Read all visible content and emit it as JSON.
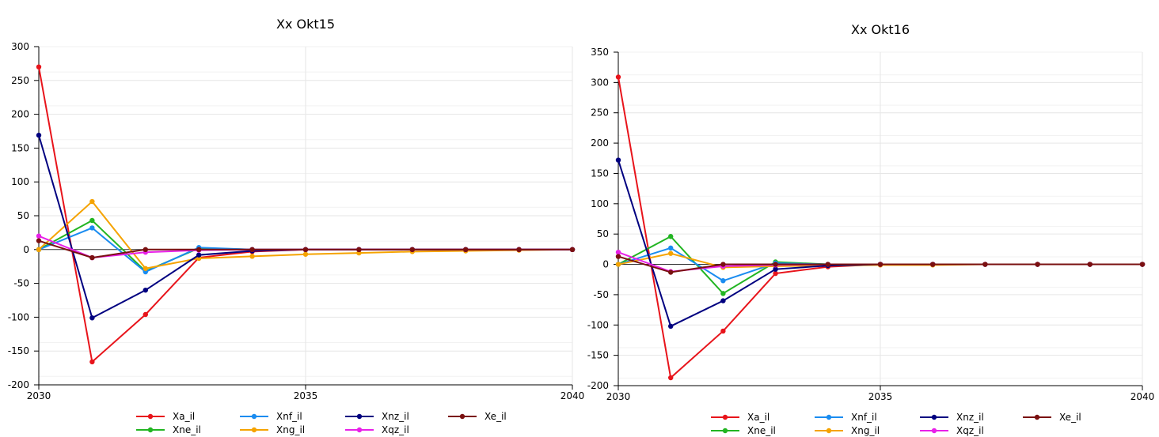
{
  "chart_data": [
    {
      "type": "line",
      "title": "Xx Okt15",
      "xlabel": "",
      "ylabel": "",
      "xlim": [
        2030,
        2040
      ],
      "ylim": [
        -200,
        300
      ],
      "xticks": [
        2030,
        2035,
        2040
      ],
      "yticks": [
        -200,
        -150,
        -100,
        -50,
        0,
        50,
        100,
        150,
        200,
        250,
        300
      ],
      "grid": true,
      "legend": "bottom",
      "x": [
        2030,
        2031,
        2032,
        2033,
        2034,
        2035,
        2036,
        2037,
        2038,
        2039,
        2040
      ],
      "series": [
        {
          "name": "Xa_il",
          "color": "#e8141b",
          "values": [
            270,
            -166,
            -96,
            -12,
            -3,
            0,
            0,
            0,
            0,
            0,
            0
          ]
        },
        {
          "name": "Xne_il",
          "color": "#22b522",
          "values": [
            0,
            43,
            -32,
            2,
            0,
            0,
            0,
            0,
            0,
            0,
            0
          ]
        },
        {
          "name": "Xnf_il",
          "color": "#1a8cf0",
          "values": [
            0,
            32,
            -33,
            3,
            0,
            0,
            0,
            0,
            0,
            0,
            0
          ]
        },
        {
          "name": "Xng_il",
          "color": "#f5a300",
          "values": [
            0,
            71,
            -28,
            -13,
            -10,
            -7,
            -5,
            -3,
            -2,
            -1,
            0
          ]
        },
        {
          "name": "Xnz_il",
          "color": "#000080",
          "values": [
            169,
            -101,
            -60,
            -8,
            -2,
            0,
            0,
            0,
            0,
            0,
            0
          ]
        },
        {
          "name": "Xqz_il",
          "color": "#e820e8",
          "values": [
            20,
            -12,
            -4,
            -1,
            0,
            0,
            0,
            0,
            0,
            0,
            0
          ]
        },
        {
          "name": "Xe_il",
          "color": "#7a1010",
          "values": [
            13,
            -12,
            0,
            0,
            0,
            0,
            0,
            0,
            0,
            0,
            0
          ]
        }
      ]
    },
    {
      "type": "line",
      "title": "Xx Okt16",
      "xlabel": "",
      "ylabel": "",
      "xlim": [
        2030,
        2040
      ],
      "ylim": [
        -200,
        350
      ],
      "xticks": [
        2030,
        2035,
        2040
      ],
      "yticks": [
        -200,
        -150,
        -100,
        -50,
        0,
        50,
        100,
        150,
        200,
        250,
        300,
        350
      ],
      "grid": true,
      "legend": "bottom",
      "x": [
        2030,
        2031,
        2032,
        2033,
        2034,
        2035,
        2036,
        2037,
        2038,
        2039,
        2040
      ],
      "series": [
        {
          "name": "Xa_il",
          "color": "#e8141b",
          "values": [
            309,
            -187,
            -110,
            -15,
            -4,
            0,
            0,
            0,
            0,
            0,
            0
          ]
        },
        {
          "name": "Xne_il",
          "color": "#22b522",
          "values": [
            0,
            46,
            -48,
            4,
            0,
            0,
            0,
            0,
            0,
            0,
            0
          ]
        },
        {
          "name": "Xnf_il",
          "color": "#1a8cf0",
          "values": [
            0,
            27,
            -27,
            2,
            0,
            0,
            0,
            0,
            0,
            0,
            0
          ]
        },
        {
          "name": "Xng_il",
          "color": "#f5a300",
          "values": [
            0,
            18,
            -5,
            -3,
            -2,
            -1,
            -1,
            0,
            0,
            0,
            0
          ]
        },
        {
          "name": "Xnz_il",
          "color": "#000080",
          "values": [
            172,
            -102,
            -60,
            -8,
            -2,
            0,
            0,
            0,
            0,
            0,
            0
          ]
        },
        {
          "name": "Xqz_il",
          "color": "#e820e8",
          "values": [
            20,
            -12,
            -3,
            -1,
            0,
            0,
            0,
            0,
            0,
            0,
            0
          ]
        },
        {
          "name": "Xe_il",
          "color": "#7a1010",
          "values": [
            13,
            -13,
            0,
            0,
            0,
            0,
            0,
            0,
            0,
            0,
            0
          ]
        }
      ]
    }
  ]
}
